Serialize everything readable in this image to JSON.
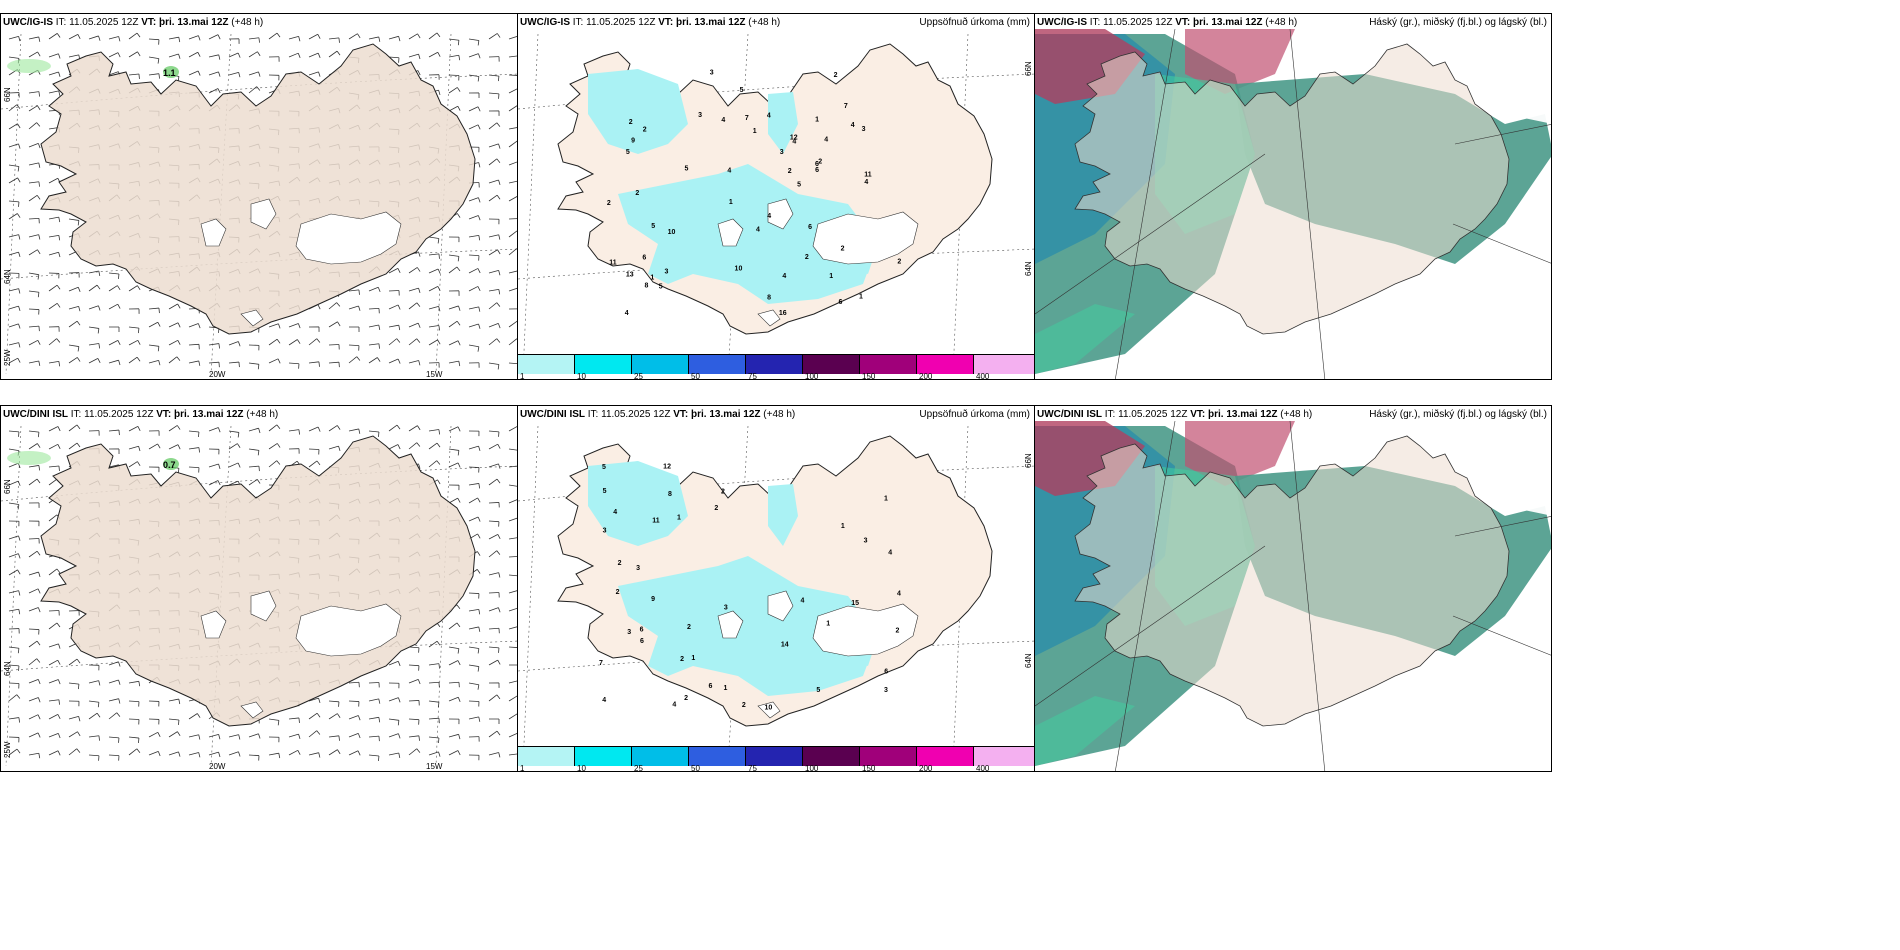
{
  "panels": [
    {
      "model": "UWC/IG-IS",
      "it_label": "IT:",
      "it_value": "11.05.2025 12Z",
      "vt_label": "VT:",
      "vt_value": "þri. 13.mai 12Z",
      "lead": "(+48 h)",
      "right_label": ""
    },
    {
      "model": "UWC/IG-IS",
      "it_label": "IT:",
      "it_value": "11.05.2025 12Z",
      "vt_label": "VT:",
      "vt_value": "þri. 13.mai 12Z",
      "lead": "(+48 h)",
      "right_label": "Uppsöfnuð úrkoma (mm)"
    },
    {
      "model": "UWC/IG-IS",
      "it_label": "IT:",
      "it_value": "11.05.2025 12Z",
      "vt_label": "VT:",
      "vt_value": "þri. 13.mai 12Z",
      "lead": "(+48 h)",
      "right_label": "Háský (gr.), miðský (fj.bl.) og lágský (bl.)"
    },
    {
      "model": "UWC/DINI ISL",
      "it_label": "IT:",
      "it_value": "11.05.2025 12Z",
      "vt_label": "VT:",
      "vt_value": "þri. 13.mai 12Z",
      "lead": "(+48 h)",
      "right_label": ""
    },
    {
      "model": "UWC/DINI ISL",
      "it_label": "IT:",
      "it_value": "11.05.2025 12Z",
      "vt_label": "VT:",
      "vt_value": "þri. 13.mai 12Z",
      "lead": "(+48 h)",
      "right_label": "Uppsöfnuð úrkoma (mm)"
    },
    {
      "model": "UWC/DINI ISL",
      "it_label": "IT:",
      "it_value": "11.05.2025 12Z",
      "vt_label": "VT:",
      "vt_value": "þri. 13.mai 12Z",
      "lead": "(+48 h)",
      "right_label": "Háský (gr.), miðský (fj.bl.) og lágský (bl.)"
    }
  ],
  "wind_labels": {
    "top": "1.1",
    "bottom": "0.7"
  },
  "grid_labels": {
    "lat66": "66N",
    "lat64": "64N",
    "lon25": "25W",
    "lon20": "20W",
    "lon15": "15W",
    "lat66e": "66N",
    "lat64e": "64N"
  },
  "colorbar": {
    "ticks": [
      "1",
      "10",
      "25",
      "50",
      "75",
      "100",
      "150",
      "200",
      "400"
    ],
    "colors": [
      "#b4f4f4",
      "#00e8f0",
      "#00bee8",
      "#2e5ee0",
      "#2424b0",
      "#5a0050",
      "#a0007a",
      "#f000b0",
      "#f4b0f0"
    ]
  },
  "precip_values_top": [
    "2",
    "5",
    "1",
    "1",
    "3",
    "5",
    "4",
    "2",
    "4",
    "4",
    "16",
    "8",
    "1",
    "4",
    "4",
    "3",
    "2",
    "3",
    "4",
    "2",
    "1",
    "2",
    "7",
    "4",
    "6",
    "7",
    "5",
    "5",
    "3",
    "13",
    "4",
    "6",
    "11",
    "3",
    "9",
    "12",
    "8",
    "2",
    "10",
    "4",
    "6",
    "2",
    "1",
    "4",
    "6",
    "4",
    "2",
    "5",
    "2",
    "1",
    "5",
    "10",
    "2",
    "6",
    "11"
  ],
  "precip_values_bottom": [
    "1",
    "2",
    "5",
    "1",
    "3",
    "3",
    "4",
    "3",
    "12",
    "1",
    "2",
    "6",
    "1",
    "8",
    "4",
    "7",
    "6",
    "2",
    "4",
    "10",
    "11",
    "3",
    "6",
    "2",
    "4",
    "5",
    "2",
    "2",
    "4",
    "6",
    "2",
    "3",
    "4",
    "1",
    "1",
    "9",
    "3",
    "2",
    "5",
    "14",
    "2",
    "15"
  ],
  "colors": {
    "land": "#ecddd0",
    "land_precip": "#faeee4",
    "precip_light": "#aaf2f4",
    "cloud_high": "#4a9a8a",
    "cloud_mid": "#2e8fa8",
    "cloud_low": "#3fd0a0",
    "cloud_red": "#b04060"
  }
}
